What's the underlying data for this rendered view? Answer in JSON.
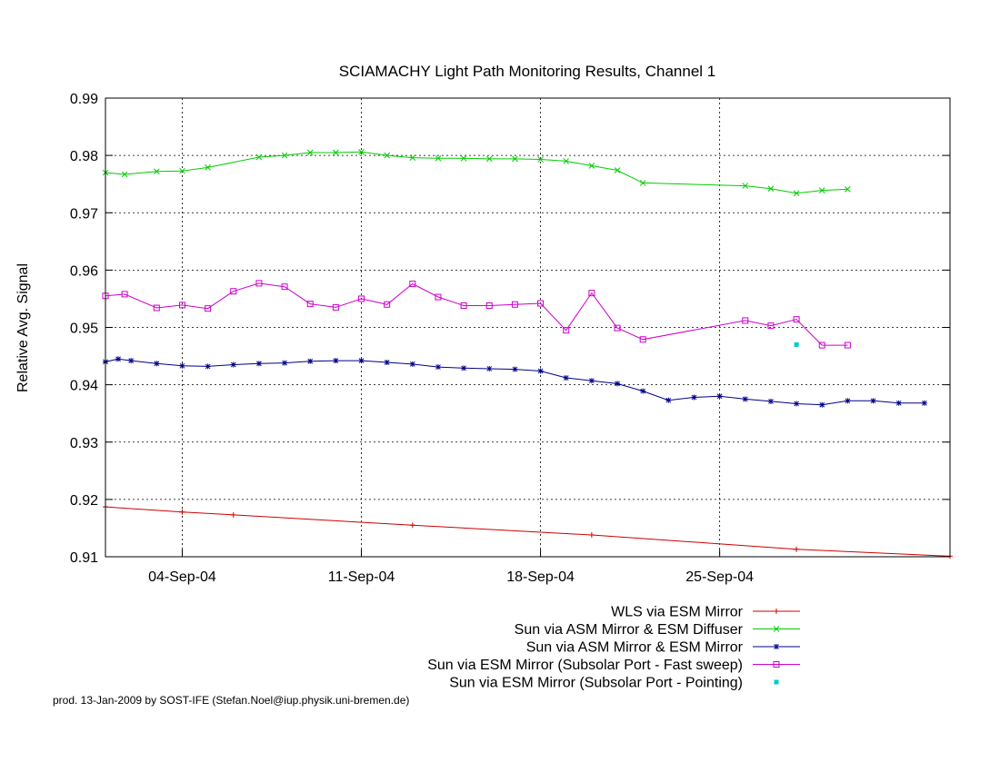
{
  "chart_data": {
    "type": "line",
    "title": "SCIAMACHY Light Path Monitoring Results, Channel 1",
    "xlabel": "",
    "ylabel": "Relative Avg. Signal",
    "x_range": [
      "2004-09-01",
      "2004-10-04"
    ],
    "ylim": [
      0.91,
      0.99
    ],
    "y_ticks": [
      "0.91",
      "0.92",
      "0.93",
      "0.94",
      "0.95",
      "0.96",
      "0.97",
      "0.98",
      "0.99"
    ],
    "y_tick_values": [
      0.91,
      0.92,
      0.93,
      0.94,
      0.95,
      0.96,
      0.97,
      0.98,
      0.99
    ],
    "x_ticks": [
      {
        "label": "04-Sep-04",
        "date": "2004-09-04"
      },
      {
        "label": "11-Sep-04",
        "date": "2004-09-11"
      },
      {
        "label": "18-Sep-04",
        "date": "2004-09-18"
      },
      {
        "label": "25-Sep-04",
        "date": "2004-09-25"
      }
    ],
    "grid": true,
    "legend_position": "bottom-right",
    "series": [
      {
        "name": "WLS via ESM Mirror",
        "color": "#cc0000",
        "marker": "plus",
        "x": [
          "2004-09-01",
          "2004-09-04",
          "2004-09-06",
          "2004-09-13",
          "2004-09-20",
          "2004-09-28",
          "2004-10-04"
        ],
        "y": [
          0.9187,
          0.9178,
          0.9173,
          0.9155,
          0.9138,
          0.9113,
          0.9101
        ]
      },
      {
        "name": "Sun via ASM Mirror & ESM Diffuser",
        "color": "#00cc00",
        "marker": "x",
        "x": [
          "2004-09-01",
          "2004-09-01T18:00",
          "2004-09-03",
          "2004-09-04",
          "2004-09-05",
          "2004-09-07",
          "2004-09-08",
          "2004-09-09",
          "2004-09-10",
          "2004-09-11",
          "2004-09-12",
          "2004-09-13",
          "2004-09-14",
          "2004-09-15",
          "2004-09-16",
          "2004-09-17",
          "2004-09-18",
          "2004-09-19",
          "2004-09-20",
          "2004-09-21",
          "2004-09-22",
          "2004-09-26",
          "2004-09-27",
          "2004-09-28",
          "2004-09-29",
          "2004-09-30"
        ],
        "y": [
          0.977,
          0.9767,
          0.9772,
          0.9773,
          0.9779,
          0.9797,
          0.98,
          0.9805,
          0.9805,
          0.9806,
          0.98,
          0.9796,
          0.9795,
          0.9795,
          0.9794,
          0.9794,
          0.9793,
          0.979,
          0.9782,
          0.9774,
          0.9752,
          0.9747,
          0.9742,
          0.9734,
          0.9739,
          0.9741
        ]
      },
      {
        "name": "Sun via ASM Mirror & ESM Mirror",
        "color": "#00008b",
        "marker": "star",
        "x": [
          "2004-09-01",
          "2004-09-01T12:00",
          "2004-09-02",
          "2004-09-03",
          "2004-09-04",
          "2004-09-05",
          "2004-09-06",
          "2004-09-07",
          "2004-09-08",
          "2004-09-09",
          "2004-09-10",
          "2004-09-11",
          "2004-09-12",
          "2004-09-13",
          "2004-09-14",
          "2004-09-15",
          "2004-09-16",
          "2004-09-17",
          "2004-09-18",
          "2004-09-19",
          "2004-09-20",
          "2004-09-21",
          "2004-09-22",
          "2004-09-23",
          "2004-09-24",
          "2004-09-25",
          "2004-09-26",
          "2004-09-27",
          "2004-09-28",
          "2004-09-29",
          "2004-09-30",
          "2004-10-01",
          "2004-10-02",
          "2004-10-03"
        ],
        "y": [
          0.944,
          0.9445,
          0.9442,
          0.9437,
          0.9433,
          0.9432,
          0.9435,
          0.9437,
          0.9438,
          0.9441,
          0.9442,
          0.9442,
          0.9439,
          0.9436,
          0.9431,
          0.9429,
          0.9428,
          0.9427,
          0.9424,
          0.9412,
          0.9407,
          0.9402,
          0.9389,
          0.9373,
          0.9378,
          0.938,
          0.9375,
          0.9371,
          0.9367,
          0.9365,
          0.9372,
          0.9372,
          0.9368,
          0.9368
        ]
      },
      {
        "name": "Sun via ESM Mirror (Subsolar Port - Fast sweep)",
        "color": "#cc00cc",
        "marker": "square",
        "x": [
          "2004-09-01",
          "2004-09-01T18:00",
          "2004-09-03",
          "2004-09-04",
          "2004-09-05",
          "2004-09-06",
          "2004-09-07",
          "2004-09-08",
          "2004-09-09",
          "2004-09-10",
          "2004-09-11",
          "2004-09-12",
          "2004-09-13",
          "2004-09-14",
          "2004-09-15",
          "2004-09-16",
          "2004-09-17",
          "2004-09-18",
          "2004-09-19",
          "2004-09-20",
          "2004-09-21",
          "2004-09-22",
          "2004-09-26",
          "2004-09-27",
          "2004-09-28",
          "2004-09-29",
          "2004-09-30"
        ],
        "y": [
          0.9555,
          0.9558,
          0.9534,
          0.9539,
          0.9533,
          0.9563,
          0.9577,
          0.9571,
          0.9541,
          0.9535,
          0.955,
          0.954,
          0.9576,
          0.9553,
          0.9538,
          0.9538,
          0.954,
          0.9542,
          0.9495,
          0.956,
          0.9499,
          0.9479,
          0.9512,
          0.9503,
          0.9514,
          0.9469,
          0.9469
        ]
      },
      {
        "name": "Sun via ESM Mirror (Subsolar Port - Pointing)",
        "color": "#00cccc",
        "marker": "dot",
        "x": [
          "2004-09-28"
        ],
        "y": [
          0.947
        ]
      }
    ]
  },
  "footer": "prod. 13-Jan-2009 by SOST-IFE (Stefan.Noel@iup.physik.uni-bremen.de)"
}
